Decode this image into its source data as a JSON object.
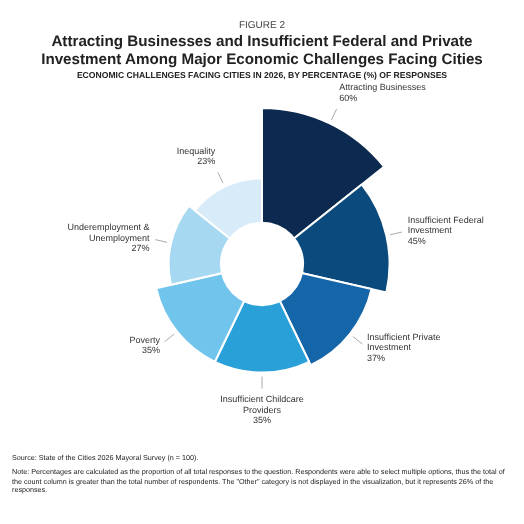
{
  "chart_data": {
    "type": "other",
    "title": "Attracting Businesses and Insufficient Federal and Private Investment Among Major Economic Challenges Facing Cities",
    "subtitle": "ECONOMIC CHALLENGES FACING CITIES IN 2026, BY PERCENTAGE (%) OF RESPONSES",
    "categories": [
      "Attracting Businesses",
      "Insufficient Federal Investment",
      "Insufficient Private Investment",
      "Insufficient Childcare Providers",
      "Poverty",
      "Underemployment & Unemployment",
      "Inequality"
    ],
    "values": [
      60,
      45,
      37,
      35,
      35,
      27,
      23
    ],
    "value_labels": [
      "60%",
      "45%",
      "37%",
      "35%",
      "35%",
      "27%",
      "23%"
    ],
    "colors": [
      "#0c2a4f",
      "#0b4a7c",
      "#1565a9",
      "#2aa0d9",
      "#71c4ec",
      "#a7d8f2",
      "#d8ebf8"
    ],
    "annotations": [
      "FIGURE 2",
      "Source: State of the Cities 2026 Mayoral Survey (n = 100).",
      "Note: Percentages are calculated as the proportion of all total responses to the question. Respondents were able to select multiple options, thus the total of the count column is greater than the total number of respondents. The \"Other\" category is not displayed in the visualization, but it represents 26% of the responses."
    ]
  }
}
